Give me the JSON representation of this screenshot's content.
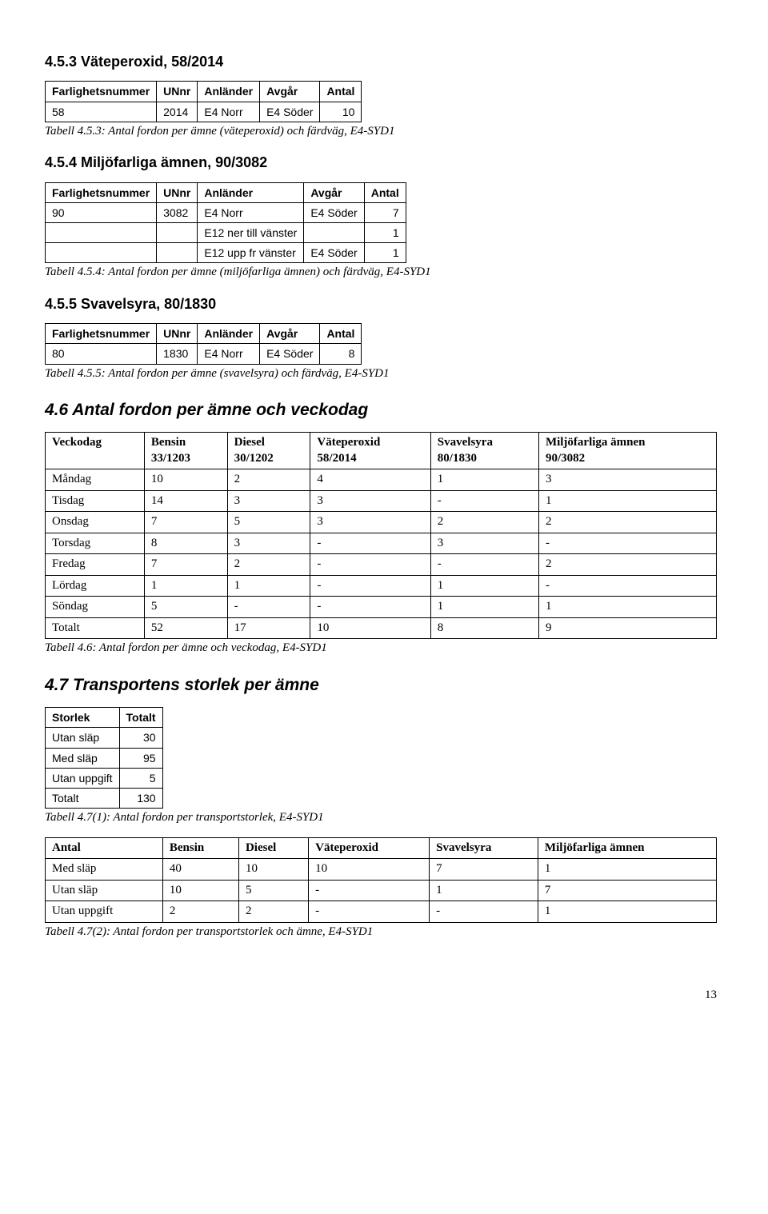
{
  "s453": {
    "heading": "4.5.3 Väteperoxid, 58/2014",
    "table": {
      "headers": [
        "Farlighetsnummer",
        "UNnr",
        "Anländer",
        "Avgår",
        "Antal"
      ],
      "rows": [
        [
          "58",
          "2014",
          "E4 Norr",
          "E4 Söder",
          "10"
        ]
      ]
    },
    "caption": "Tabell 4.5.3: Antal fordon per ämne (väteperoxid) och färdväg, E4-SYD1"
  },
  "s454": {
    "heading": "4.5.4 Miljöfarliga ämnen, 90/3082",
    "table": {
      "headers": [
        "Farlighetsnummer",
        "UNnr",
        "Anländer",
        "Avgår",
        "Antal"
      ],
      "rows": [
        [
          "90",
          "3082",
          "E4 Norr",
          "E4 Söder",
          "7"
        ],
        [
          "",
          "",
          "E12 ner till vänster",
          "",
          "1"
        ],
        [
          "",
          "",
          "E12 upp fr vänster",
          "E4 Söder",
          "1"
        ]
      ]
    },
    "caption": "Tabell 4.5.4: Antal fordon per ämne (miljöfarliga ämnen) och färdväg, E4-SYD1"
  },
  "s455": {
    "heading": "4.5.5 Svavelsyra, 80/1830",
    "table": {
      "headers": [
        "Farlighetsnummer",
        "UNnr",
        "Anländer",
        "Avgår",
        "Antal"
      ],
      "rows": [
        [
          "80",
          "1830",
          "E4 Norr",
          "E4 Söder",
          "8"
        ]
      ]
    },
    "caption": "Tabell 4.5.5: Antal fordon per ämne (svavelsyra) och färdväg, E4-SYD1"
  },
  "s46": {
    "heading": "4.6 Antal fordon per ämne och veckodag",
    "table": {
      "headers_top": [
        "Veckodag",
        "Bensin",
        "Diesel",
        "Väteperoxid",
        "Svavelsyra",
        "Miljöfarliga ämnen"
      ],
      "headers_sub": [
        "",
        "33/1203",
        "30/1202",
        "58/2014",
        "80/1830",
        "90/3082"
      ],
      "rows": [
        [
          "Måndag",
          "10",
          "2",
          "4",
          "1",
          "3"
        ],
        [
          "Tisdag",
          "14",
          "3",
          "3",
          "-",
          "1"
        ],
        [
          "Onsdag",
          "7",
          "5",
          "3",
          "2",
          "2"
        ],
        [
          "Torsdag",
          "8",
          "3",
          "-",
          "3",
          "-"
        ],
        [
          "Fredag",
          "7",
          "2",
          "-",
          "-",
          "2"
        ],
        [
          "Lördag",
          "1",
          "1",
          "-",
          "1",
          "-"
        ],
        [
          "Söndag",
          "5",
          "-",
          "-",
          "1",
          "1"
        ],
        [
          "Totalt",
          "52",
          "17",
          "10",
          "8",
          "9"
        ]
      ]
    },
    "caption": "Tabell 4.6: Antal fordon per ämne och veckodag, E4-SYD1"
  },
  "s47": {
    "heading": "4.7 Transportens storlek per ämne",
    "table1": {
      "headers": [
        "Storlek",
        "Totalt"
      ],
      "rows": [
        [
          "Utan släp",
          "30"
        ],
        [
          "Med släp",
          "95"
        ],
        [
          "Utan uppgift",
          "5"
        ],
        [
          "Totalt",
          "130"
        ]
      ]
    },
    "caption1": "Tabell 4.7(1): Antal fordon per transportstorlek, E4-SYD1",
    "table2": {
      "headers": [
        "Antal",
        "Bensin",
        "Diesel",
        "Väteperoxid",
        "Svavelsyra",
        "Miljöfarliga ämnen"
      ],
      "rows": [
        [
          "Med släp",
          "40",
          "10",
          "10",
          "7",
          "1"
        ],
        [
          "Utan släp",
          "10",
          "5",
          "-",
          "1",
          "7"
        ],
        [
          "Utan uppgift",
          "2",
          "2",
          "-",
          "-",
          "1"
        ]
      ]
    },
    "caption2": "Tabell 4.7(2): Antal fordon per transportstorlek och ämne, E4-SYD1"
  },
  "page_number": "13"
}
